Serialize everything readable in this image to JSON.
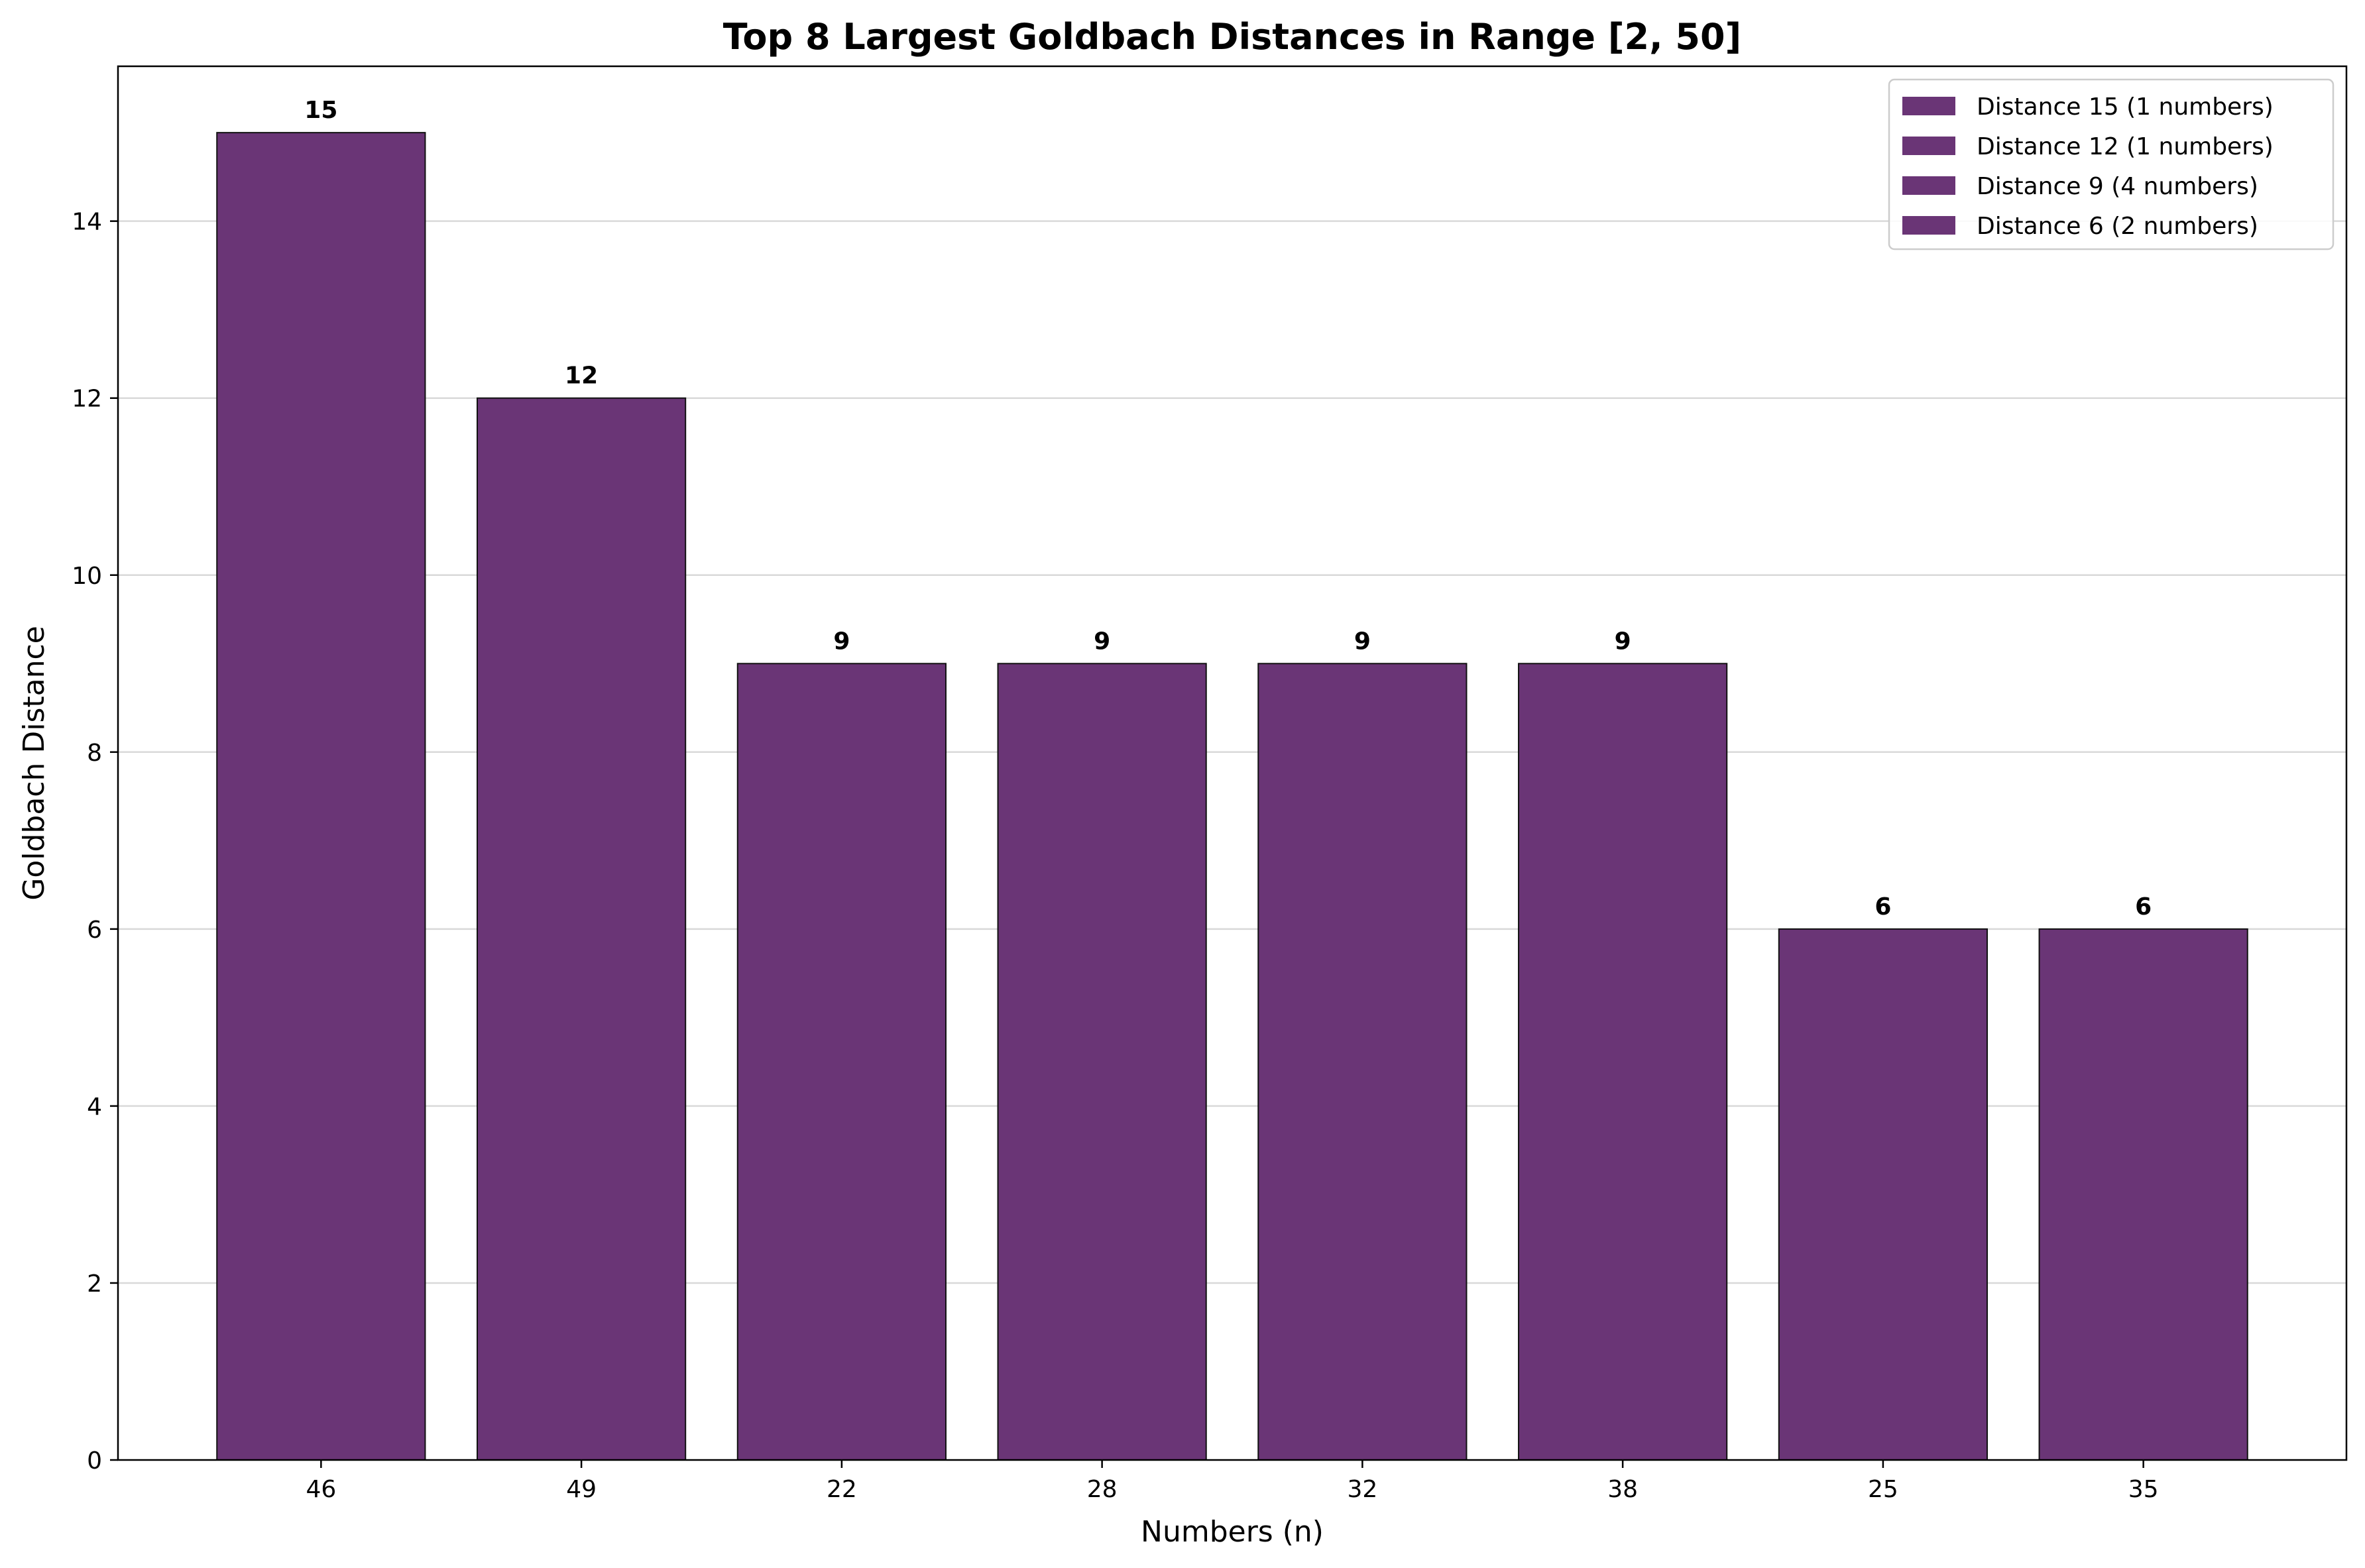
{
  "chart_data": {
    "type": "bar",
    "title": "Top 8 Largest Goldbach Distances in Range [2, 50]",
    "xlabel": "Numbers (n)",
    "ylabel": "Goldbach Distance",
    "categories": [
      "46",
      "49",
      "22",
      "28",
      "32",
      "38",
      "25",
      "35"
    ],
    "values": [
      15,
      12,
      9,
      9,
      9,
      9,
      6,
      6
    ],
    "data_labels": [
      "15",
      "12",
      "9",
      "9",
      "9",
      "9",
      "6",
      "6"
    ],
    "ylim": [
      0,
      15.75
    ],
    "yticks": [
      0,
      2,
      4,
      6,
      8,
      10,
      12,
      14
    ],
    "ytick_labels": [
      "0",
      "2",
      "4",
      "6",
      "8",
      "10",
      "12",
      "14"
    ],
    "grid": "y-axis",
    "bar_color": "#6a3576",
    "bar_edge_color": "#111111",
    "legend": {
      "placement": "top-right",
      "entries": [
        "Distance 15 (1 numbers)",
        "Distance 12 (1 numbers)",
        "Distance 9 (4 numbers)",
        "Distance 6 (2 numbers)"
      ]
    }
  }
}
